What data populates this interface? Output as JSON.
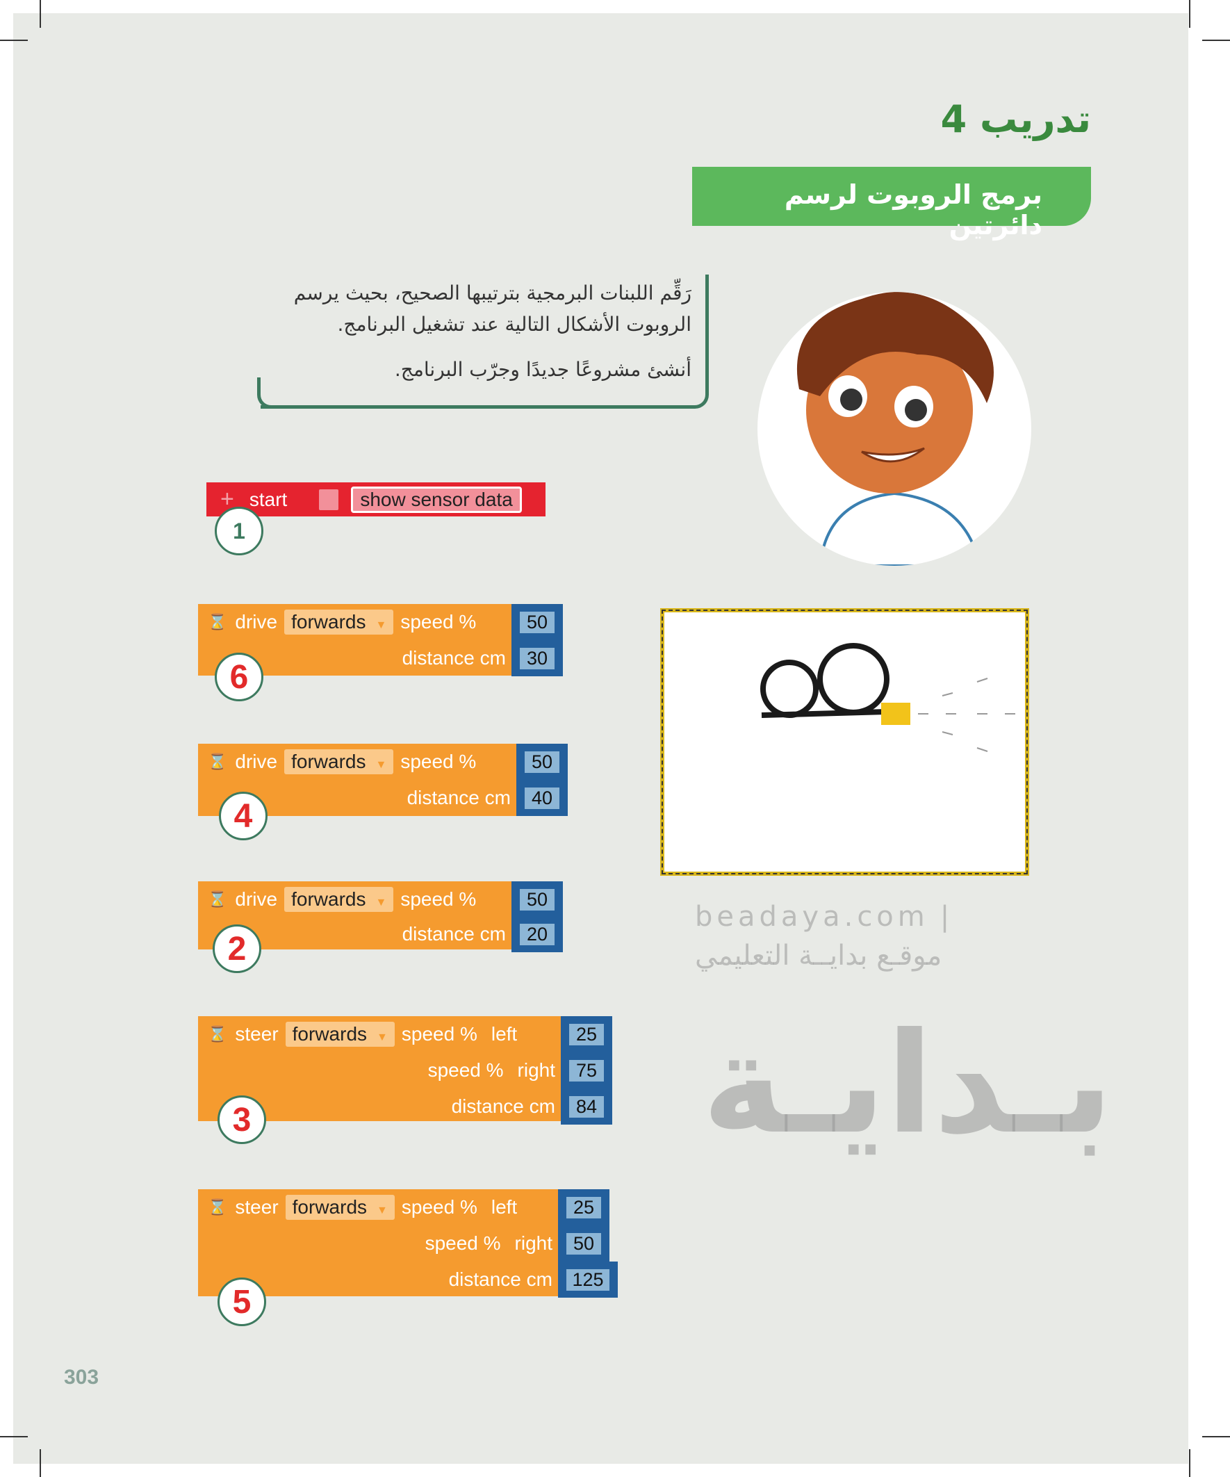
{
  "title": "تدريب 4",
  "banner": "برمج الروبوت لرسم دائرتين",
  "instructions": {
    "line1": "رَقِّم اللبنات البرمجية بترتيبها الصحيح، بحيث يرسم",
    "line2": "الروبوت الأشكال التالية عند تشغيل البرنامج.",
    "line3": "أنشئ مشروعًا جديدًا وجرّب البرنامج."
  },
  "start_block": {
    "label": "start",
    "button": "show sensor data",
    "number": "1",
    "icon": "plus-icon",
    "color": "#e5232f"
  },
  "blocks": [
    {
      "number": "6",
      "cmd": "drive",
      "direction": "forwards",
      "speed_label": "speed %",
      "speed": "50",
      "distance_label": "distance cm",
      "distance": "30"
    },
    {
      "number": "4",
      "cmd": "drive",
      "direction": "forwards",
      "speed_label": "speed %",
      "speed": "50",
      "distance_label": "distance cm",
      "distance": "40"
    },
    {
      "number": "2",
      "cmd": "drive",
      "direction": "forwards",
      "speed_label": "speed %",
      "speed": "50",
      "distance_label": "distance cm",
      "distance": "20"
    },
    {
      "number": "3",
      "cmd": "steer",
      "direction": "forwards",
      "speed_label": "speed %",
      "left_label": "left",
      "left": "25",
      "right_label": "right",
      "right": "75",
      "distance_label": "distance cm",
      "distance": "84"
    },
    {
      "number": "5",
      "cmd": "steer",
      "direction": "forwards",
      "speed_label": "speed %",
      "left_label": "left",
      "left": "25",
      "right_label": "right",
      "right": "50",
      "distance_label": "distance cm",
      "distance": "125"
    }
  ],
  "colors": {
    "block": "#f59b2f",
    "value": "#235f9c",
    "accent": "#5cb85c",
    "number": "#e22a2a"
  },
  "watermark": {
    "logo": "بـدايـة",
    "site": "beadaya.com",
    "tagline": "موقـع بدايــة التعليمي"
  },
  "page_number": "303"
}
